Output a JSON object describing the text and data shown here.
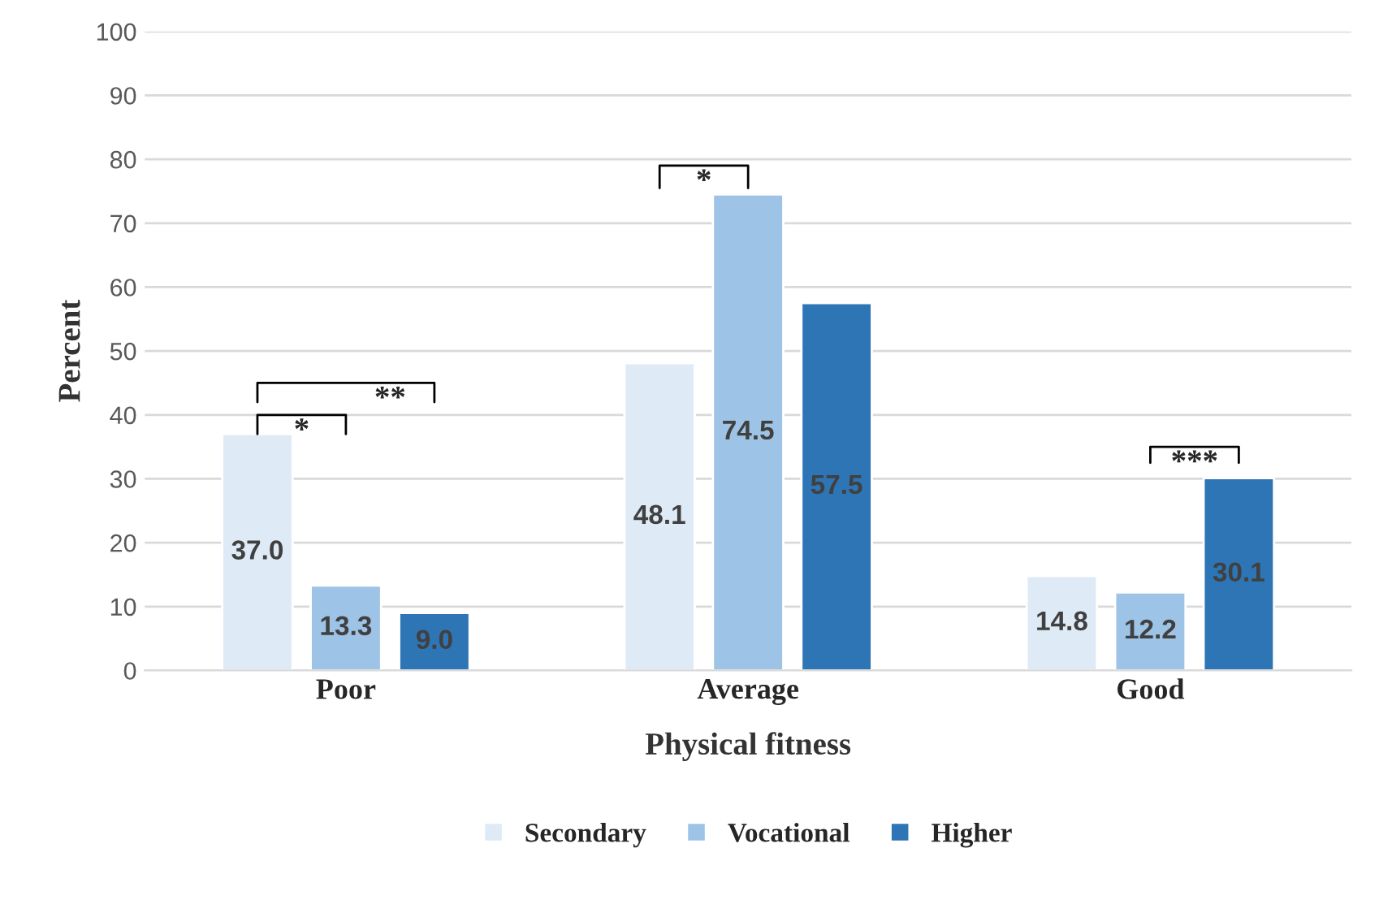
{
  "chart_data": {
    "type": "bar",
    "xlabel": "Physical fitness",
    "ylabel": "Percent",
    "categories": [
      "Poor",
      "Average",
      "Good"
    ],
    "series": [
      {
        "name": "Secondary",
        "color": "#deebf7",
        "values": [
          37.0,
          48.1,
          14.8
        ],
        "value_labels": [
          "37.0",
          "48.1",
          "14.8"
        ]
      },
      {
        "name": "Vocational",
        "color": "#9dc3e6",
        "values": [
          13.3,
          74.5,
          12.2
        ],
        "value_labels": [
          "13.3",
          "74.5",
          "12.2"
        ]
      },
      {
        "name": "Higher",
        "color": "#2e75b6",
        "values": [
          9.0,
          57.5,
          30.1
        ],
        "value_labels": [
          "9.0",
          "57.5",
          "30.1"
        ]
      }
    ],
    "ylim": [
      0,
      100
    ],
    "yticks": [
      0,
      10,
      20,
      30,
      40,
      50,
      60,
      70,
      80,
      90,
      100
    ],
    "grid": "y",
    "legend": "bottom",
    "annotations": [
      "*",
      "**",
      "*",
      "***"
    ]
  }
}
